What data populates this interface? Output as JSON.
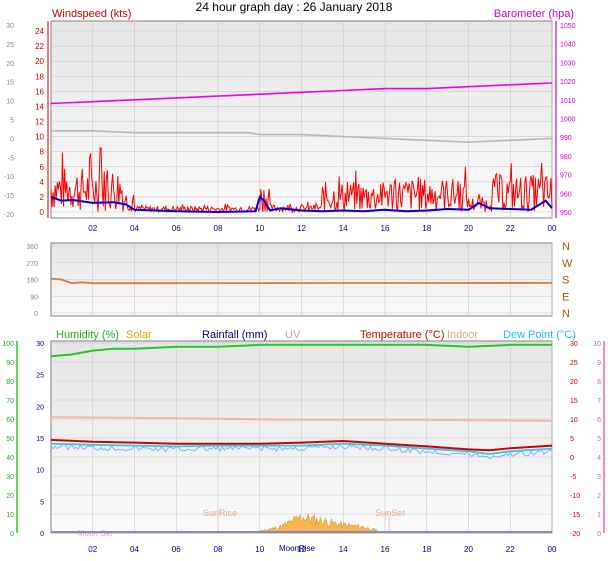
{
  "title": "24 hour graph day : 26 January 2018",
  "x_ticks": [
    "02",
    "04",
    "06",
    "08",
    "10",
    "12",
    "14",
    "16",
    "18",
    "20",
    "22",
    "00"
  ],
  "colors": {
    "wind": "#ff0000",
    "wind_avg": "#0000cc",
    "baro": "#ee00ee",
    "gray": "#b8b8b8",
    "dir": "#e07a30",
    "humidity": "#22c822",
    "solar": "#d4b000",
    "rainfall": "#000080",
    "uv": "#e8a0c8",
    "temp": "#cc0000",
    "indoor": "#f4b8a8",
    "dew": "#30c8e8",
    "sun_fill": "#f8b850",
    "grid": "#c8c8c8",
    "plot_bg": "#f2f2f2"
  },
  "chart_data": [
    {
      "type": "line",
      "name": "wind-barometer",
      "labels": {
        "wind": "Windspeed (kts)",
        "baro": "Barometer (hpa)"
      },
      "left_outer_ticks": [
        "30",
        "25",
        "20",
        "15",
        "10",
        "5",
        "0",
        "-5",
        "-10",
        "-15",
        "-20"
      ],
      "left_inner_ticks": [
        "24",
        "22",
        "20",
        "18",
        "16",
        "14",
        "12",
        "10",
        "8",
        "6",
        "4",
        "2",
        "0"
      ],
      "right_ticks": [
        "1050",
        "1040",
        "1030",
        "1020",
        "1010",
        "1000",
        "990",
        "980",
        "970",
        "960",
        "950"
      ],
      "ylim_wind": [
        0,
        25
      ],
      "ylim_baro": [
        950,
        1053
      ],
      "x_hours": [
        0,
        24
      ],
      "series": [
        {
          "key": "baro",
          "unit": "hpa",
          "x": [
            0,
            2,
            4,
            6,
            8,
            10,
            12,
            14,
            16,
            18,
            20,
            22,
            24
          ],
          "y": [
            1008,
            1009,
            1010,
            1011,
            1012,
            1013,
            1014,
            1015,
            1016,
            1016,
            1017,
            1018,
            1019
          ]
        },
        {
          "key": "gray",
          "y_outer": [
            2,
            2,
            1.5,
            1.5,
            1.5,
            1.5,
            1,
            1,
            0.5,
            0,
            -0.5,
            -1,
            -0.5,
            0
          ],
          "x": [
            0,
            2,
            4,
            6,
            8,
            9.5,
            10,
            12,
            14,
            16,
            18,
            20,
            22,
            24
          ]
        },
        {
          "key": "wind_gust",
          "unit": "kts",
          "segments": [
            [
              0,
              3.5,
              6
            ],
            [
              3.5,
              4,
              3
            ],
            [
              4,
              10,
              0.8
            ],
            [
              10,
              10.5,
              4
            ],
            [
              10.5,
              13,
              1
            ],
            [
              13,
              16,
              4
            ],
            [
              16,
              20,
              4.5
            ],
            [
              20,
              21,
              2
            ],
            [
              21,
              24,
              5
            ]
          ]
        },
        {
          "key": "wind_avg",
          "unit": "kts",
          "x": [
            0,
            0.5,
            1,
            2,
            3,
            3.6,
            4,
            5,
            6,
            8,
            9.8,
            10,
            10.2,
            10.5,
            11,
            12,
            13,
            14,
            15,
            16,
            17,
            18,
            19,
            20,
            20.5,
            21,
            22,
            23,
            23.7,
            24
          ],
          "y": [
            2,
            1.5,
            1.6,
            1.2,
            1.3,
            1,
            0.3,
            0.2,
            0.1,
            0,
            0.1,
            2,
            1.5,
            0.2,
            0.5,
            0.2,
            0.1,
            0.2,
            0.1,
            0.3,
            0.1,
            0.2,
            0.4,
            0.3,
            1.2,
            0.5,
            0.4,
            0.3,
            1.5,
            0.5
          ]
        }
      ]
    },
    {
      "type": "line",
      "name": "wind-direction",
      "left_ticks": [
        "360",
        "270",
        "180",
        "90",
        "0"
      ],
      "right_ticks": [
        "N",
        "W",
        "S",
        "E",
        "N"
      ],
      "ylim": [
        0,
        360
      ],
      "series": [
        {
          "key": "dir",
          "x": [
            0,
            0.5,
            1,
            1.5,
            2,
            24
          ],
          "y": [
            185,
            180,
            160,
            165,
            160,
            162
          ]
        }
      ]
    },
    {
      "type": "line",
      "name": "temp-humidity",
      "labels": {
        "humidity": "Humidity (%)",
        "solar": "Solar",
        "rainfall": "Rainfall (mm)",
        "uv": "UV",
        "temp": "Temperature (°C)",
        "indoor": "Indoor",
        "dew": "Dew Point (°C)"
      },
      "hum_ticks": [
        "100",
        "90",
        "80",
        "70",
        "60",
        "50",
        "40",
        "30",
        "20",
        "10",
        "0"
      ],
      "rain_ticks": [
        "30",
        "25",
        "20",
        "15",
        "10",
        "5",
        "0"
      ],
      "temp_ticks": [
        "30",
        "25",
        "20",
        "15",
        "10",
        "5",
        "0",
        "-5",
        "-10",
        "-15",
        "-20"
      ],
      "uv_ticks": [
        "10",
        "9",
        "8",
        "7",
        "6",
        "5",
        "4",
        "3",
        "2",
        "1",
        "0"
      ],
      "ylim_hum": [
        0,
        100
      ],
      "ylim_temp": [
        -20,
        30
      ],
      "annotations": [
        "SunRise",
        "SunSet",
        "Moon Set",
        "MoonRise"
      ],
      "series": [
        {
          "key": "humidity",
          "x": [
            0,
            1,
            2,
            3,
            4,
            6,
            8,
            10,
            12,
            14,
            16,
            18,
            20,
            22,
            24
          ],
          "y": [
            93,
            94,
            96,
            97,
            97,
            98,
            98,
            99,
            99,
            99,
            99,
            99,
            98,
            99,
            99
          ]
        },
        {
          "key": "indoor",
          "x": [
            0,
            6,
            12,
            18,
            24
          ],
          "y": [
            10.5,
            10.2,
            9.8,
            9.8,
            9.5
          ]
        },
        {
          "key": "temp",
          "x": [
            0,
            2,
            4,
            6,
            8,
            10,
            12,
            14,
            16,
            18,
            20,
            21,
            22,
            24
          ],
          "y": [
            4.5,
            4,
            3.8,
            3.5,
            3.5,
            3.5,
            3.8,
            4.2,
            3.5,
            2.8,
            2,
            1.8,
            2.3,
            3
          ]
        },
        {
          "key": "dew",
          "x": [
            0,
            2,
            4,
            6,
            8,
            10,
            12,
            14,
            16,
            18,
            20,
            21,
            22,
            24
          ],
          "y": [
            3.5,
            3.2,
            3,
            2.8,
            3,
            3,
            3,
            3.5,
            3,
            2.2,
            1.5,
            0.8,
            1.5,
            2.2
          ]
        },
        {
          "key": "solar",
          "x": [
            9,
            10,
            11,
            12,
            13,
            14,
            15,
            16
          ],
          "y": [
            0,
            1,
            3,
            8,
            6,
            4,
            3,
            0
          ]
        }
      ]
    }
  ]
}
